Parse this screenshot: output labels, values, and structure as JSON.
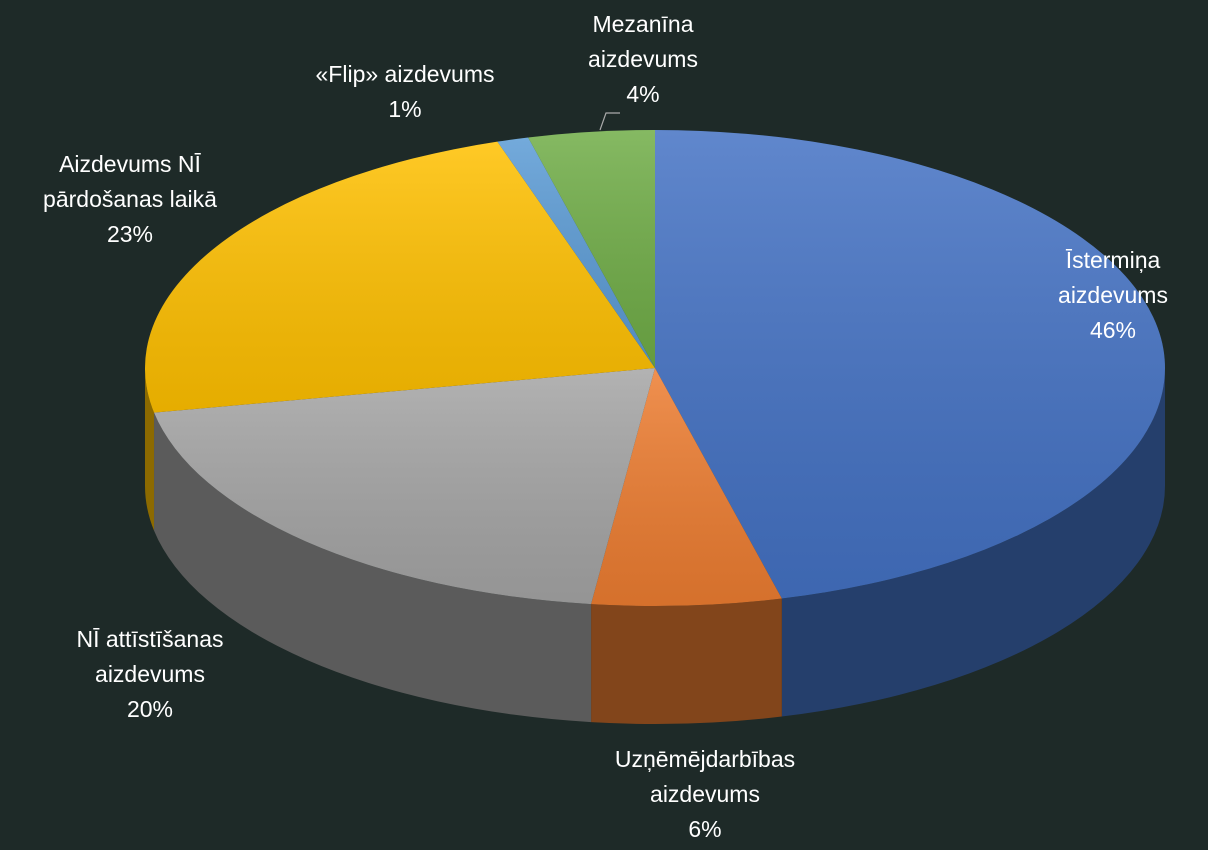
{
  "chart_data": {
    "type": "pie",
    "categories": [
      "Īstermiņa aizdevums",
      "Uzņēmējdarbības aizdevums",
      "NĪ attīstīšanas aizdevums",
      "Aizdevums NĪ pārdošanas laikā",
      "«Flip» aizdevums",
      "Mezanīna aizdevums"
    ],
    "values": [
      46,
      6,
      20,
      23,
      1,
      4
    ],
    "value_labels": [
      "46%",
      "6%",
      "20%",
      "23%",
      "1%",
      "4%"
    ],
    "colors": [
      "#4472c4",
      "#ed7d31",
      "#a5a5a5",
      "#ffc000",
      "#5b9bd5",
      "#70ad47"
    ]
  }
}
